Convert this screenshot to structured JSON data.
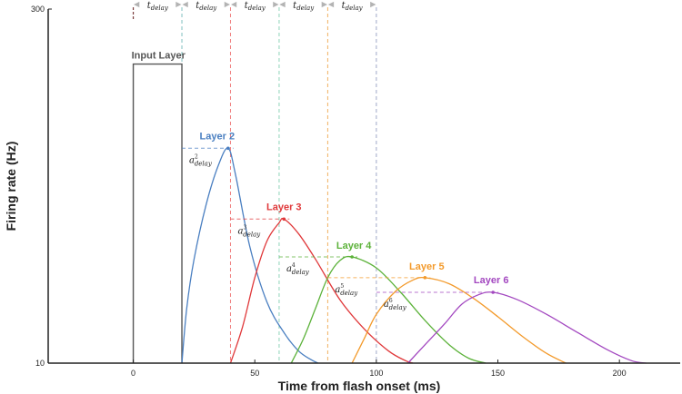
{
  "chart_data": {
    "type": "line",
    "xlabel": "Time from flash onset (ms)",
    "ylabel": "Firing rate (Hz)",
    "xlim": [
      -35,
      225
    ],
    "ylim": [
      10,
      300
    ],
    "x_ticks": [
      0,
      50,
      100,
      150,
      200
    ],
    "y_ticks": [
      10,
      300
    ],
    "delay_label": {
      "main": "t",
      "sub": "delay"
    },
    "delay_bounds": [
      0,
      20,
      40,
      60,
      80,
      100
    ],
    "series": [
      {
        "name": "Input Layer",
        "color": "#555555",
        "points": [
          [
            0,
            10
          ],
          [
            0,
            255
          ],
          [
            20,
            255
          ],
          [
            20,
            10
          ]
        ]
      },
      {
        "name": "Layer 2",
        "color": "#4a7fc1",
        "points": [
          [
            20,
            10
          ],
          [
            22,
            55
          ],
          [
            25,
            95
          ],
          [
            30,
            140
          ],
          [
            35,
            172
          ],
          [
            39,
            186
          ],
          [
            42,
            165
          ],
          [
            48,
            105
          ],
          [
            55,
            60
          ],
          [
            62,
            35
          ],
          [
            68,
            20
          ],
          [
            73,
            13
          ],
          [
            76,
            10
          ]
        ],
        "peak": [
          39,
          186
        ],
        "annotation": {
          "sup": "2",
          "sub": "delay",
          "main": "a"
        }
      },
      {
        "name": "Layer 3",
        "color": "#e0383a",
        "points": [
          [
            40,
            10
          ],
          [
            45,
            40
          ],
          [
            50,
            80
          ],
          [
            55,
            110
          ],
          [
            60,
            125
          ],
          [
            62,
            128
          ],
          [
            68,
            116
          ],
          [
            75,
            95
          ],
          [
            85,
            62
          ],
          [
            95,
            38
          ],
          [
            105,
            20
          ],
          [
            112,
            12
          ],
          [
            115,
            10
          ]
        ],
        "peak": [
          62,
          128
        ],
        "annotation": {
          "sup": "3",
          "sub": "delay",
          "main": "a"
        }
      },
      {
        "name": "Layer 4",
        "color": "#5cb23a",
        "points": [
          [
            65,
            10
          ],
          [
            70,
            30
          ],
          [
            75,
            55
          ],
          [
            80,
            80
          ],
          [
            85,
            94
          ],
          [
            90,
            97
          ],
          [
            100,
            88
          ],
          [
            110,
            68
          ],
          [
            120,
            45
          ],
          [
            130,
            25
          ],
          [
            138,
            14
          ],
          [
            145,
            10
          ]
        ],
        "peak": [
          90,
          97
        ],
        "annotation": {
          "sup": "4",
          "sub": "delay",
          "main": "a"
        }
      },
      {
        "name": "Layer 5",
        "color": "#f39a2b",
        "points": [
          [
            90,
            10
          ],
          [
            95,
            30
          ],
          [
            100,
            50
          ],
          [
            108,
            69
          ],
          [
            115,
            78
          ],
          [
            120,
            80
          ],
          [
            130,
            75
          ],
          [
            140,
            63
          ],
          [
            150,
            48
          ],
          [
            160,
            32
          ],
          [
            170,
            18
          ],
          [
            178,
            10
          ]
        ],
        "peak": [
          120,
          80
        ],
        "annotation": {
          "sup": "5",
          "sub": "delay",
          "main": "a"
        }
      },
      {
        "name": "Layer 6",
        "color": "#a348c0",
        "points": [
          [
            113,
            10
          ],
          [
            120,
            25
          ],
          [
            128,
            42
          ],
          [
            135,
            58
          ],
          [
            142,
            66
          ],
          [
            148,
            68
          ],
          [
            158,
            62
          ],
          [
            170,
            50
          ],
          [
            182,
            36
          ],
          [
            195,
            21
          ],
          [
            205,
            12
          ],
          [
            211,
            10
          ]
        ],
        "peak": [
          148,
          68
        ],
        "annotation": {
          "sup": "6",
          "sub": "delay",
          "main": "a"
        }
      }
    ]
  }
}
